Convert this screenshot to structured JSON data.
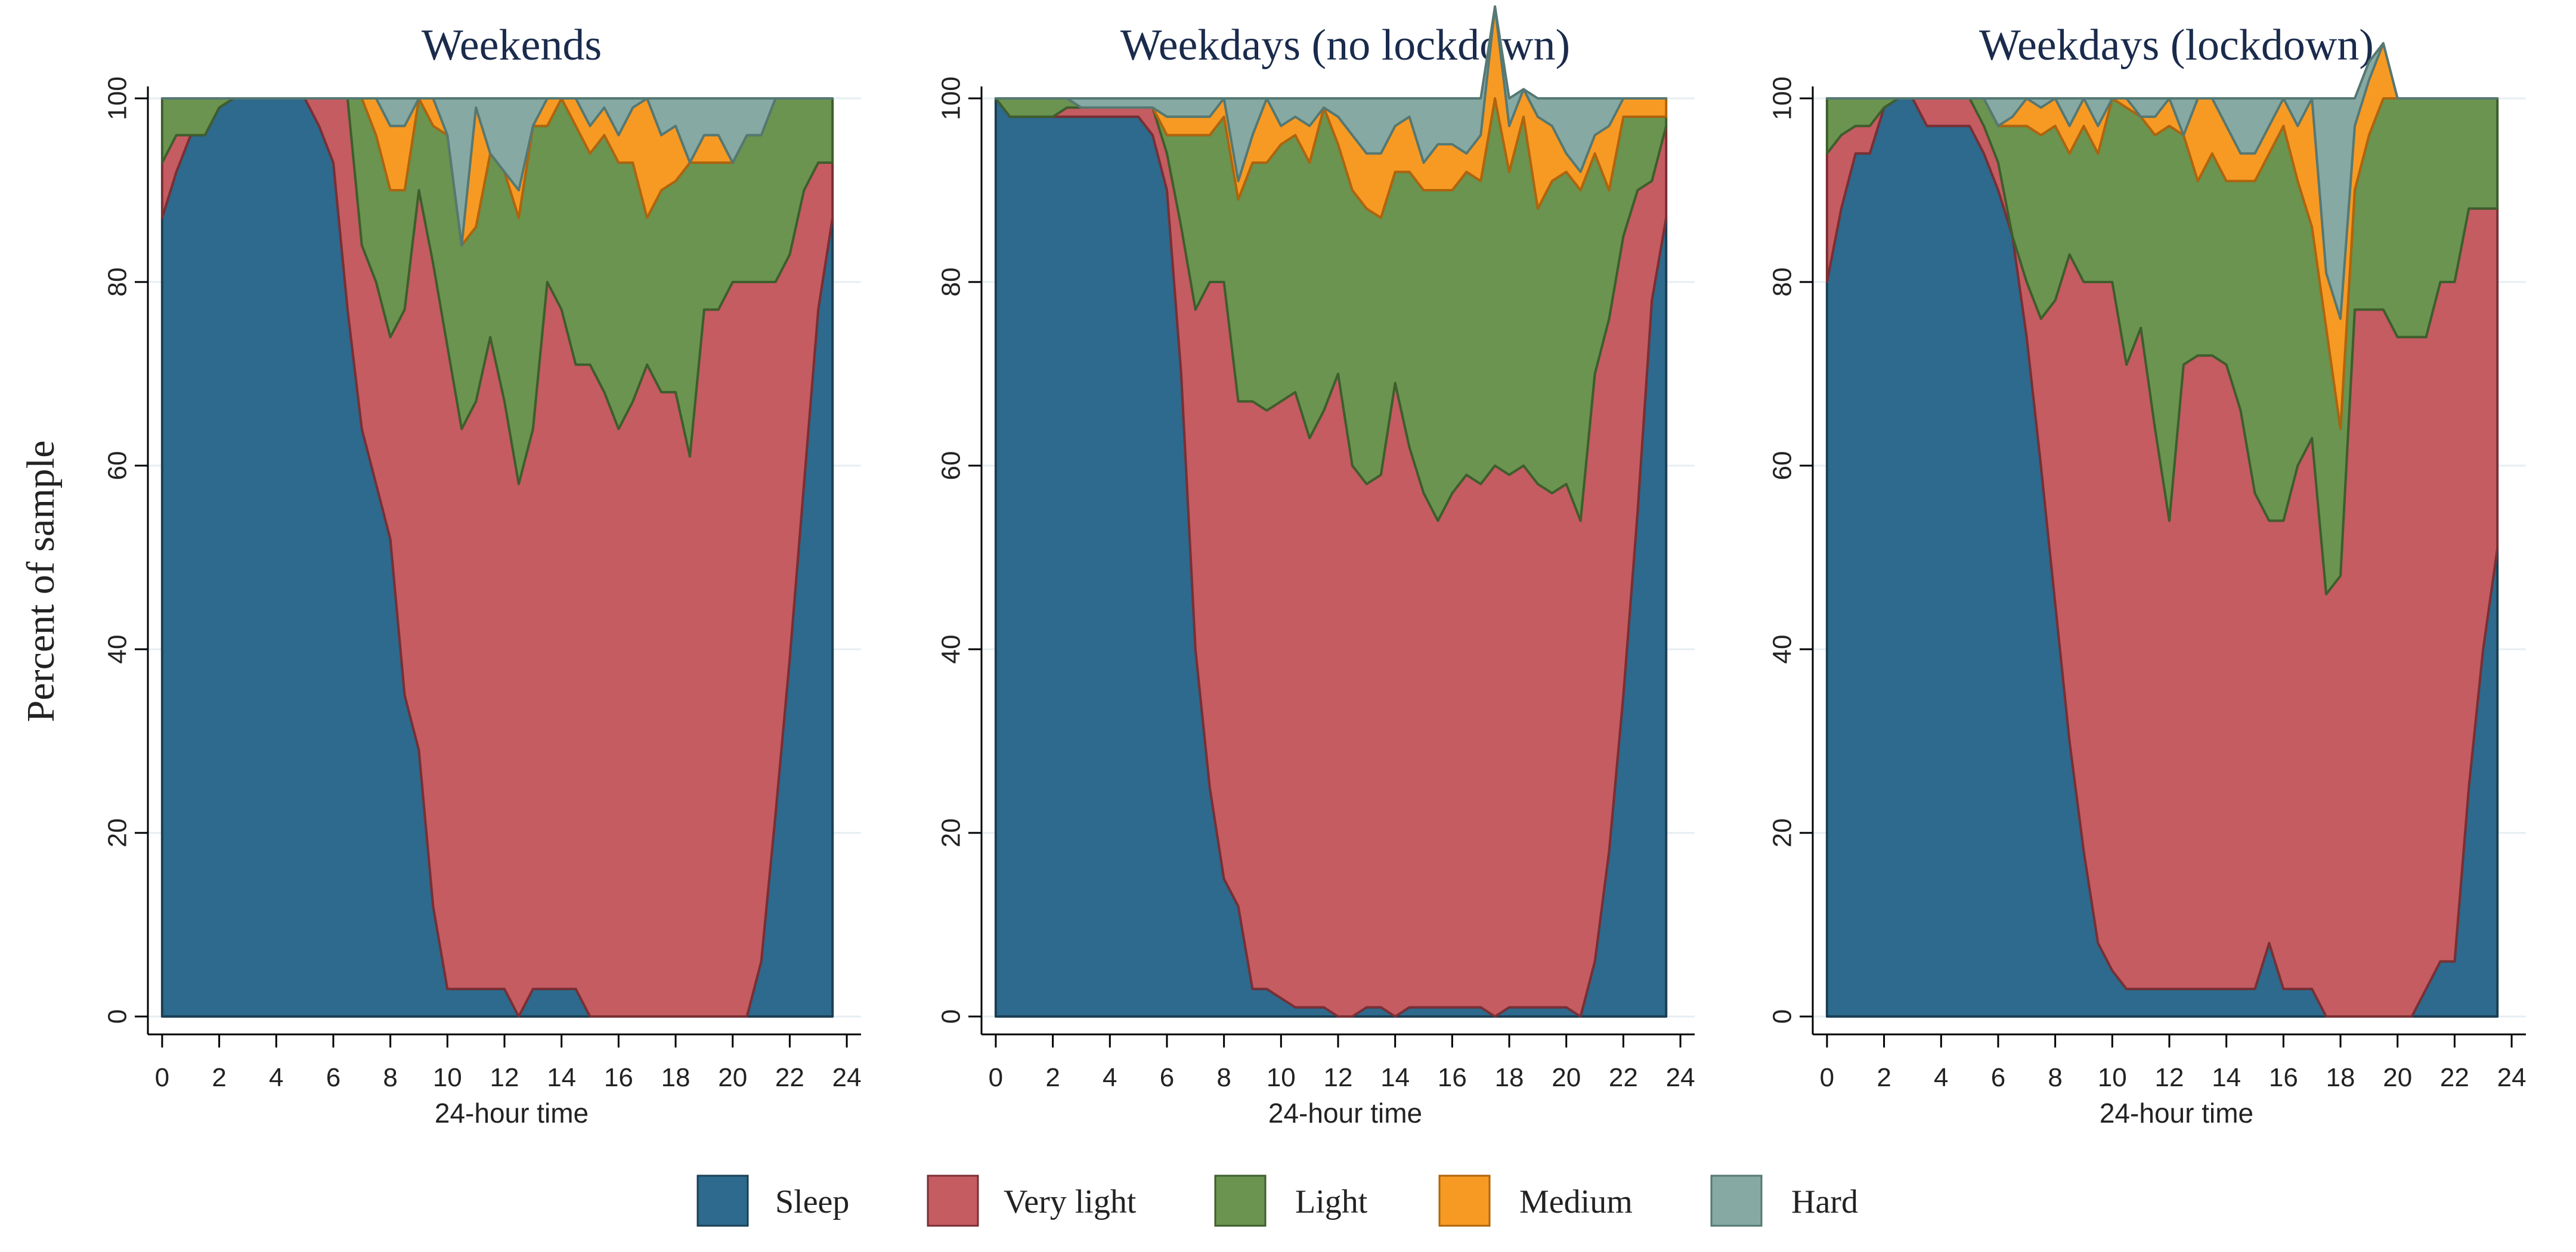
{
  "colors": {
    "sleep": "#2d6a8d",
    "very_light": "#c45c62",
    "light": "#6a9450",
    "medium": "#f79a24",
    "hard": "#86aaa3"
  },
  "chart_data": {
    "type": "area",
    "stacked": true,
    "shared_ylabel": "Percent of sample",
    "legend": {
      "position": "bottom",
      "entries": [
        "Sleep",
        "Very light",
        "Light",
        "Medium",
        "Hard"
      ]
    },
    "panels": [
      {
        "title": "Weekends",
        "xlabel": "24-hour time",
        "xlim": [
          0,
          24
        ],
        "ylim": [
          0,
          100
        ],
        "xticks": [
          "0",
          "2",
          "4",
          "6",
          "8",
          "10",
          "12",
          "14",
          "16",
          "18",
          "20",
          "22",
          "24"
        ],
        "yticks": [
          "0",
          "20",
          "40",
          "60",
          "80",
          "100"
        ],
        "x": [
          0,
          0.5,
          1,
          1.5,
          2,
          2.5,
          3,
          3.5,
          4,
          4.5,
          5,
          5.5,
          6,
          6.5,
          7,
          7.5,
          8,
          8.5,
          9,
          9.5,
          10,
          10.5,
          11,
          11.5,
          12,
          12.5,
          13,
          13.5,
          14,
          14.5,
          15,
          15.5,
          16,
          16.5,
          17,
          17.5,
          18,
          18.5,
          19,
          19.5,
          20,
          20.5,
          21,
          21.5,
          22,
          22.5,
          23,
          23.5
        ],
        "series": [
          {
            "name": "Sleep",
            "values": [
              87,
              92,
              96,
              96,
              99,
              100,
              100,
              100,
              100,
              100,
              100,
              97,
              93,
              77,
              64,
              58,
              52,
              35,
              29,
              12,
              3,
              3,
              3,
              3,
              3,
              0,
              3,
              3,
              3,
              3,
              0,
              0,
              0,
              0,
              0,
              0,
              0,
              0,
              0,
              0,
              0,
              0,
              6,
              22,
              39,
              58,
              77,
              87
            ]
          },
          {
            "name": "Very light",
            "values": [
              6,
              4,
              0,
              0,
              0,
              0,
              0,
              0,
              0,
              0,
              0,
              3,
              7,
              23,
              20,
              22,
              22,
              42,
              61,
              70,
              70,
              61,
              64,
              71,
              64,
              58,
              61,
              77,
              74,
              68,
              71,
              68,
              64,
              67,
              71,
              68,
              68,
              61,
              77,
              77,
              80,
              80,
              74,
              58,
              44,
              32,
              16,
              6
            ]
          },
          {
            "name": "Light",
            "values": [
              7,
              4,
              4,
              4,
              1,
              0,
              0,
              0,
              0,
              0,
              0,
              0,
              0,
              0,
              16,
              16,
              16,
              13,
              10,
              15,
              23,
              20,
              19,
              20,
              25,
              29,
              33,
              17,
              23,
              26,
              23,
              28,
              29,
              26,
              16,
              22,
              23,
              32,
              16,
              16,
              13,
              16,
              16,
              20,
              17,
              10,
              7,
              7
            ]
          },
          {
            "name": "Medium",
            "values": [
              0,
              0,
              0,
              0,
              0,
              0,
              0,
              0,
              0,
              0,
              0,
              0,
              0,
              0,
              0,
              4,
              7,
              7,
              0,
              3,
              0,
              0,
              13,
              0,
              0,
              3,
              0,
              3,
              0,
              3,
              3,
              3,
              3,
              6,
              13,
              6,
              6,
              0,
              3,
              3,
              0,
              0,
              0,
              0,
              0,
              0,
              0,
              0
            ]
          },
          {
            "name": "Hard",
            "values": [
              0,
              0,
              0,
              0,
              0,
              0,
              0,
              0,
              0,
              0,
              0,
              0,
              0,
              0,
              0,
              0,
              3,
              3,
              0,
              0,
              4,
              16,
              1,
              6,
              8,
              10,
              3,
              0,
              0,
              0,
              3,
              1,
              4,
              1,
              0,
              4,
              3,
              7,
              4,
              4,
              7,
              4,
              4,
              0,
              0,
              0,
              0,
              0
            ]
          }
        ]
      },
      {
        "title": "Weekdays (no lockdown)",
        "xlabel": "24-hour time",
        "xlim": [
          0,
          24
        ],
        "ylim": [
          0,
          100
        ],
        "xticks": [
          "0",
          "2",
          "4",
          "6",
          "8",
          "10",
          "12",
          "14",
          "16",
          "18",
          "20",
          "22",
          "24"
        ],
        "yticks": [
          "0",
          "20",
          "40",
          "60",
          "80",
          "100"
        ],
        "x": [
          0,
          0.5,
          1,
          1.5,
          2,
          2.5,
          3,
          3.5,
          4,
          4.5,
          5,
          5.5,
          6,
          6.5,
          7,
          7.5,
          8,
          8.5,
          9,
          9.5,
          10,
          10.5,
          11,
          11.5,
          12,
          12.5,
          13,
          13.5,
          14,
          14.5,
          15,
          15.5,
          16,
          16.5,
          17,
          17.5,
          18,
          18.5,
          19,
          19.5,
          20,
          20.5,
          21,
          21.5,
          22,
          22.5,
          23,
          23.5
        ],
        "series": [
          {
            "name": "Sleep",
            "values": [
              100,
              98,
              98,
              98,
              98,
              98,
              98,
              98,
              98,
              98,
              98,
              96,
              90,
              70,
              40,
              25,
              15,
              12,
              3,
              3,
              2,
              1,
              1,
              1,
              0,
              0,
              1,
              1,
              0,
              1,
              1,
              1,
              1,
              1,
              1,
              0,
              1,
              1,
              1,
              1,
              1,
              0,
              6,
              18,
              35,
              55,
              78,
              87
            ]
          },
          {
            "name": "Very light",
            "values": [
              0,
              0,
              0,
              0,
              0,
              1,
              1,
              1,
              1,
              1,
              1,
              3,
              4,
              16,
              37,
              55,
              65,
              55,
              64,
              63,
              65,
              67,
              62,
              65,
              70,
              60,
              57,
              58,
              69,
              61,
              56,
              53,
              56,
              58,
              57,
              60,
              58,
              59,
              57,
              56,
              57,
              54,
              64,
              58,
              50,
              35,
              13,
              10
            ]
          },
          {
            "name": "Light",
            "values": [
              0,
              2,
              2,
              2,
              2,
              1,
              0,
              0,
              0,
              0,
              0,
              0,
              2,
              10,
              19,
              16,
              18,
              22,
              26,
              27,
              28,
              28,
              30,
              33,
              25,
              30,
              30,
              28,
              23,
              30,
              33,
              36,
              33,
              33,
              33,
              40,
              33,
              38,
              30,
              34,
              34,
              36,
              24,
              14,
              13,
              8,
              7,
              1
            ]
          },
          {
            "name": "Medium",
            "values": [
              0,
              0,
              0,
              0,
              0,
              0,
              0,
              0,
              0,
              0,
              0,
              0,
              2,
              2,
              2,
              2,
              2,
              2,
              3,
              7,
              2,
              2,
              4,
              0,
              3,
              6,
              6,
              7,
              5,
              6,
              3,
              5,
              5,
              2,
              5,
              10,
              5,
              3,
              10,
              6,
              2,
              2,
              2,
              7,
              2,
              2,
              2,
              2
            ]
          },
          {
            "name": "Hard",
            "values": [
              0,
              0,
              0,
              0,
              0,
              0,
              1,
              1,
              1,
              1,
              1,
              1,
              2,
              2,
              2,
              2,
              0,
              9,
              4,
              0,
              3,
              2,
              3,
              1,
              2,
              4,
              6,
              6,
              3,
              2,
              7,
              5,
              5,
              6,
              4,
              0,
              3,
              0,
              2,
              3,
              6,
              8,
              4,
              3,
              0,
              0,
              0,
              0
            ]
          }
        ]
      },
      {
        "title": "Weekdays (lockdown)",
        "xlabel": "24-hour time",
        "xlim": [
          0,
          24
        ],
        "ylim": [
          0,
          100
        ],
        "xticks": [
          "0",
          "2",
          "4",
          "6",
          "8",
          "10",
          "12",
          "14",
          "16",
          "18",
          "20",
          "22",
          "24"
        ],
        "yticks": [
          "0",
          "20",
          "40",
          "60",
          "80",
          "100"
        ],
        "x": [
          0,
          0.5,
          1,
          1.5,
          2,
          2.5,
          3,
          3.5,
          4,
          4.5,
          5,
          5.5,
          6,
          6.5,
          7,
          7.5,
          8,
          8.5,
          9,
          9.5,
          10,
          10.5,
          11,
          11.5,
          12,
          12.5,
          13,
          13.5,
          14,
          14.5,
          15,
          15.5,
          16,
          16.5,
          17,
          17.5,
          18,
          18.5,
          19,
          19.5,
          20,
          20.5,
          21,
          21.5,
          22,
          22.5,
          23,
          23.5
        ],
        "series": [
          {
            "name": "Sleep",
            "values": [
              80,
              88,
              94,
              94,
              99,
              100,
              100,
              97,
              97,
              97,
              97,
              94,
              90,
              85,
              74,
              60,
              45,
              30,
              18,
              8,
              5,
              3,
              3,
              3,
              3,
              3,
              3,
              3,
              3,
              3,
              3,
              8,
              3,
              3,
              3,
              0,
              0,
              0,
              0,
              0,
              0,
              0,
              3,
              6,
              6,
              25,
              40,
              51
            ]
          },
          {
            "name": "Very light",
            "values": [
              14,
              8,
              3,
              3,
              0,
              0,
              0,
              3,
              3,
              3,
              3,
              3,
              3,
              0,
              6,
              16,
              33,
              53,
              62,
              72,
              75,
              68,
              72,
              61,
              51,
              68,
              69,
              69,
              68,
              63,
              54,
              46,
              51,
              57,
              60,
              46,
              48,
              77,
              77,
              77,
              74,
              74,
              71,
              74,
              74,
              63,
              48,
              37
            ]
          },
          {
            "name": "Light",
            "values": [
              6,
              4,
              3,
              3,
              1,
              0,
              0,
              0,
              0,
              0,
              0,
              3,
              4,
              12,
              17,
              20,
              19,
              11,
              17,
              14,
              20,
              28,
              23,
              32,
              43,
              25,
              19,
              22,
              20,
              25,
              34,
              40,
              43,
              31,
              23,
              29,
              16,
              13,
              19,
              23,
              26,
              26,
              26,
              20,
              20,
              12,
              12,
              12
            ]
          },
          {
            "name": "Medium",
            "values": [
              0,
              0,
              0,
              0,
              0,
              0,
              0,
              0,
              0,
              0,
              0,
              0,
              0,
              1,
              3,
              3,
              3,
              3,
              3,
              3,
              0,
              1,
              0,
              2,
              3,
              0,
              9,
              6,
              6,
              3,
              3,
              3,
              3,
              6,
              14,
              6,
              12,
              7,
              6,
              6,
              0,
              0,
              0,
              0,
              0,
              0,
              0,
              0
            ]
          },
          {
            "name": "Hard",
            "values": [
              0,
              0,
              0,
              0,
              0,
              0,
              0,
              0,
              0,
              0,
              0,
              0,
              3,
              2,
              0,
              1,
              0,
              3,
              0,
              3,
              0,
              0,
              2,
              2,
              0,
              4,
              0,
              0,
              3,
              6,
              6,
              3,
              0,
              3,
              0,
              19,
              24,
              3,
              2,
              0,
              0,
              0,
              0,
              0,
              0,
              0,
              0,
              0
            ]
          }
        ]
      }
    ]
  }
}
